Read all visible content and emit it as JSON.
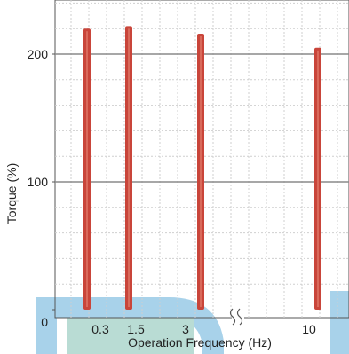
{
  "chart_data": {
    "type": "bar",
    "xlabel": "Operation Frequency (Hz)",
    "ylabel": "Torque (%)",
    "categories": [
      "0.3",
      "1.5",
      "3",
      "10"
    ],
    "values": [
      220,
      222,
      216,
      205
    ],
    "y_ticks": [
      "0",
      "100",
      "200"
    ],
    "ylim": [
      0,
      255
    ],
    "axis_break": "between 3 and 10",
    "grid": true,
    "grid_style": "dotted minor grid with solid major lines at 100 and 200",
    "legend": "none",
    "colors": {
      "bar": "#c9453a",
      "bar_core": "#e07a6a",
      "major_grid": "#8a8a8a",
      "minor_grid": "#cfcfcf",
      "deco_blue": "#a8d2ea",
      "deco_green": "#b9dcd4"
    }
  }
}
